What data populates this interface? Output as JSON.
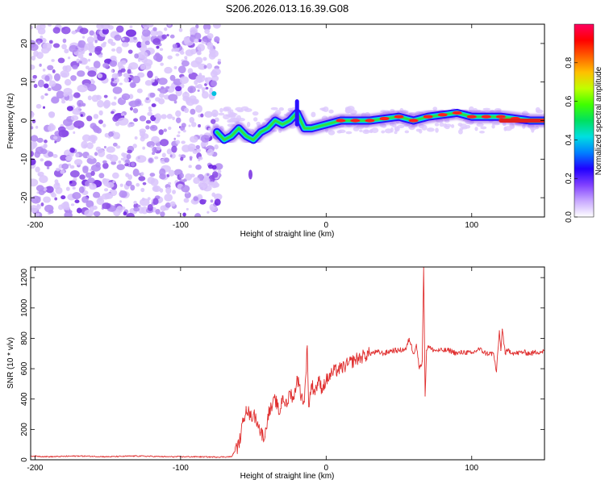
{
  "title": "S206.2026.013.16.39.G08",
  "chart_data": [
    {
      "type": "heatmap",
      "xlabel": "Height of straight line (km)",
      "ylabel": "Frequency (Hz)",
      "xlim": [
        -203,
        150
      ],
      "ylim": [
        -25,
        25
      ],
      "xticks": [
        -200,
        -100,
        0,
        100
      ],
      "yticks": [
        -20,
        -10,
        0,
        10,
        20
      ],
      "colorbar": {
        "label": "Normalized spectral amplitude",
        "range": [
          0,
          1
        ],
        "ticks": [
          "0.0",
          "0.2",
          "0.4",
          "0.6",
          "0.8"
        ],
        "colors": [
          "#ffffff",
          "#c8a8ff",
          "#8040ff",
          "#2000ff",
          "#0080ff",
          "#00e0e0",
          "#00e060",
          "#40ff00",
          "#c0ff00",
          "#ffc000",
          "#ff6000",
          "#ff0000",
          "#ff0060"
        ]
      },
      "ridge": [
        {
          "x": -75,
          "f": -3
        },
        {
          "x": -70,
          "f": -5
        },
        {
          "x": -65,
          "f": -4
        },
        {
          "x": -60,
          "f": -2
        },
        {
          "x": -55,
          "f": -4
        },
        {
          "x": -50,
          "f": -5
        },
        {
          "x": -45,
          "f": -3
        },
        {
          "x": -40,
          "f": -2
        },
        {
          "x": -35,
          "f": 0
        },
        {
          "x": -30,
          "f": -1
        },
        {
          "x": -25,
          "f": 0
        },
        {
          "x": -20,
          "f": 2
        },
        {
          "x": -15,
          "f": -2
        },
        {
          "x": -10,
          "f": -2
        },
        {
          "x": 0,
          "f": -1
        },
        {
          "x": 10,
          "f": 0
        },
        {
          "x": 20,
          "f": 0
        },
        {
          "x": 30,
          "f": 0
        },
        {
          "x": 40,
          "f": 0.5
        },
        {
          "x": 50,
          "f": 1
        },
        {
          "x": 60,
          "f": 0
        },
        {
          "x": 70,
          "f": 1
        },
        {
          "x": 80,
          "f": 1.5
        },
        {
          "x": 90,
          "f": 2
        },
        {
          "x": 100,
          "f": 1
        },
        {
          "x": 110,
          "f": 1
        },
        {
          "x": 120,
          "f": 1
        },
        {
          "x": 130,
          "f": 0.5
        },
        {
          "x": 140,
          "f": 0
        },
        {
          "x": 150,
          "f": 0
        }
      ]
    },
    {
      "type": "line",
      "xlabel": "Height of straight line (km)",
      "ylabel": "SNR (10 * v/v)",
      "xlim": [
        -203,
        150
      ],
      "ylim": [
        0,
        1270
      ],
      "xticks": [
        -200,
        -100,
        0,
        100
      ],
      "yticks": [
        0,
        200,
        400,
        600,
        800,
        1000,
        1200
      ],
      "series": [
        {
          "name": "SNR",
          "color": "#e03030",
          "x": [
            -203,
            -190,
            -170,
            -150,
            -130,
            -110,
            -90,
            -75,
            -65,
            -60,
            -57,
            -55,
            -52,
            -50,
            -47,
            -45,
            -42,
            -40,
            -37,
            -35,
            -32,
            -30,
            -27,
            -25,
            -22,
            -20,
            -17,
            -15,
            -13,
            -12,
            -10,
            -8,
            -5,
            -3,
            0,
            5,
            10,
            15,
            20,
            25,
            30,
            35,
            40,
            45,
            50,
            55,
            57,
            60,
            62,
            64,
            66,
            67,
            68,
            69,
            70,
            72,
            75,
            80,
            85,
            90,
            95,
            100,
            105,
            110,
            115,
            117,
            119,
            120,
            121,
            123,
            125,
            130,
            135,
            140,
            145,
            150
          ],
          "y": [
            25,
            20,
            25,
            20,
            25,
            20,
            20,
            18,
            20,
            100,
            250,
            350,
            280,
            300,
            250,
            180,
            150,
            300,
            350,
            400,
            300,
            420,
            350,
            450,
            400,
            550,
            420,
            380,
            750,
            350,
            500,
            450,
            520,
            470,
            520,
            580,
            600,
            630,
            660,
            680,
            700,
            710,
            700,
            720,
            720,
            730,
            800,
            700,
            760,
            600,
            650,
            1270,
            420,
            720,
            750,
            730,
            720,
            720,
            720,
            700,
            710,
            700,
            730,
            700,
            700,
            580,
            850,
            720,
            860,
            700,
            720,
            700,
            710,
            700,
            710,
            715
          ]
        }
      ]
    }
  ]
}
